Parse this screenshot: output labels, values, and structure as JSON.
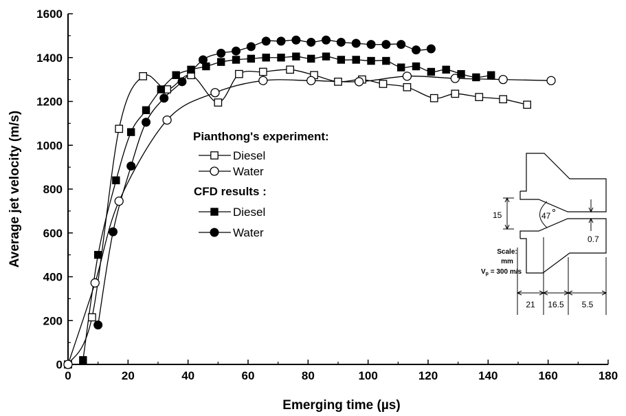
{
  "chart_data": {
    "type": "line",
    "title": "",
    "xlabel": "Emerging time (µs)",
    "ylabel": "Average jet velocity (m/s)",
    "xlim": [
      0,
      180
    ],
    "ylim": [
      0,
      1600
    ],
    "xticks": [
      "0",
      "20",
      "40",
      "60",
      "80",
      "100",
      "120",
      "140",
      "160",
      "180"
    ],
    "yticks": [
      "0",
      "200",
      "400",
      "600",
      "800",
      "1000",
      "1200",
      "1400",
      "1600"
    ],
    "legend": {
      "placement": "center",
      "group1_title": "Pianthong's experiment:",
      "group2_title": "CFD results :"
    },
    "series": [
      {
        "name": "Diesel",
        "group": "Pianthong's experiment",
        "marker": "open-square",
        "x": [
          0,
          8,
          17,
          25,
          33,
          41,
          50,
          57,
          65,
          74,
          82,
          90,
          98,
          105,
          113,
          122,
          129,
          137,
          145,
          153
        ],
        "y": [
          0,
          215,
          1075,
          1315,
          1255,
          1320,
          1195,
          1325,
          1335,
          1345,
          1320,
          1290,
          1300,
          1280,
          1265,
          1215,
          1235,
          1220,
          1210,
          1185
        ]
      },
      {
        "name": "Water",
        "group": "Pianthong's experiment",
        "marker": "open-circle",
        "x": [
          0,
          9,
          17,
          33,
          49,
          65,
          81,
          97,
          113,
          129,
          145,
          161
        ],
        "y": [
          0,
          372,
          745,
          1115,
          1240,
          1295,
          1295,
          1290,
          1315,
          1305,
          1300,
          1295
        ]
      },
      {
        "name": "Diesel",
        "group": "CFD results",
        "marker": "filled-square",
        "x": [
          5,
          10,
          16,
          21,
          26,
          31,
          36,
          41,
          46,
          51,
          56,
          61,
          66,
          71,
          76,
          81,
          86,
          91,
          96,
          101,
          106,
          111,
          116,
          121,
          126,
          131,
          136,
          141
        ],
        "y": [
          20,
          500,
          840,
          1060,
          1160,
          1255,
          1320,
          1345,
          1360,
          1380,
          1390,
          1395,
          1400,
          1400,
          1405,
          1395,
          1405,
          1390,
          1390,
          1385,
          1385,
          1355,
          1360,
          1335,
          1345,
          1325,
          1310,
          1320
        ]
      },
      {
        "name": "Water",
        "group": "CFD results",
        "marker": "filled-circle",
        "x": [
          10,
          15,
          21,
          26,
          32,
          38,
          45,
          51,
          56,
          61,
          66,
          71,
          76,
          81,
          86,
          91,
          96,
          101,
          106,
          111,
          116,
          121
        ],
        "y": [
          180,
          605,
          905,
          1105,
          1215,
          1290,
          1390,
          1420,
          1430,
          1450,
          1475,
          1475,
          1480,
          1470,
          1480,
          1470,
          1465,
          1460,
          1460,
          1460,
          1435,
          1440
        ]
      }
    ],
    "inset": {
      "dims": {
        "d1": "15",
        "angle": "47",
        "d2": "0.7",
        "l1": "21",
        "l2": "16.5",
        "l3": "5.5"
      },
      "scale_label": "Scale:",
      "scale_unit": "mm",
      "vp_sym": "V",
      "vp_sub": "p",
      "vp_rest": " = 300 m/s"
    }
  }
}
